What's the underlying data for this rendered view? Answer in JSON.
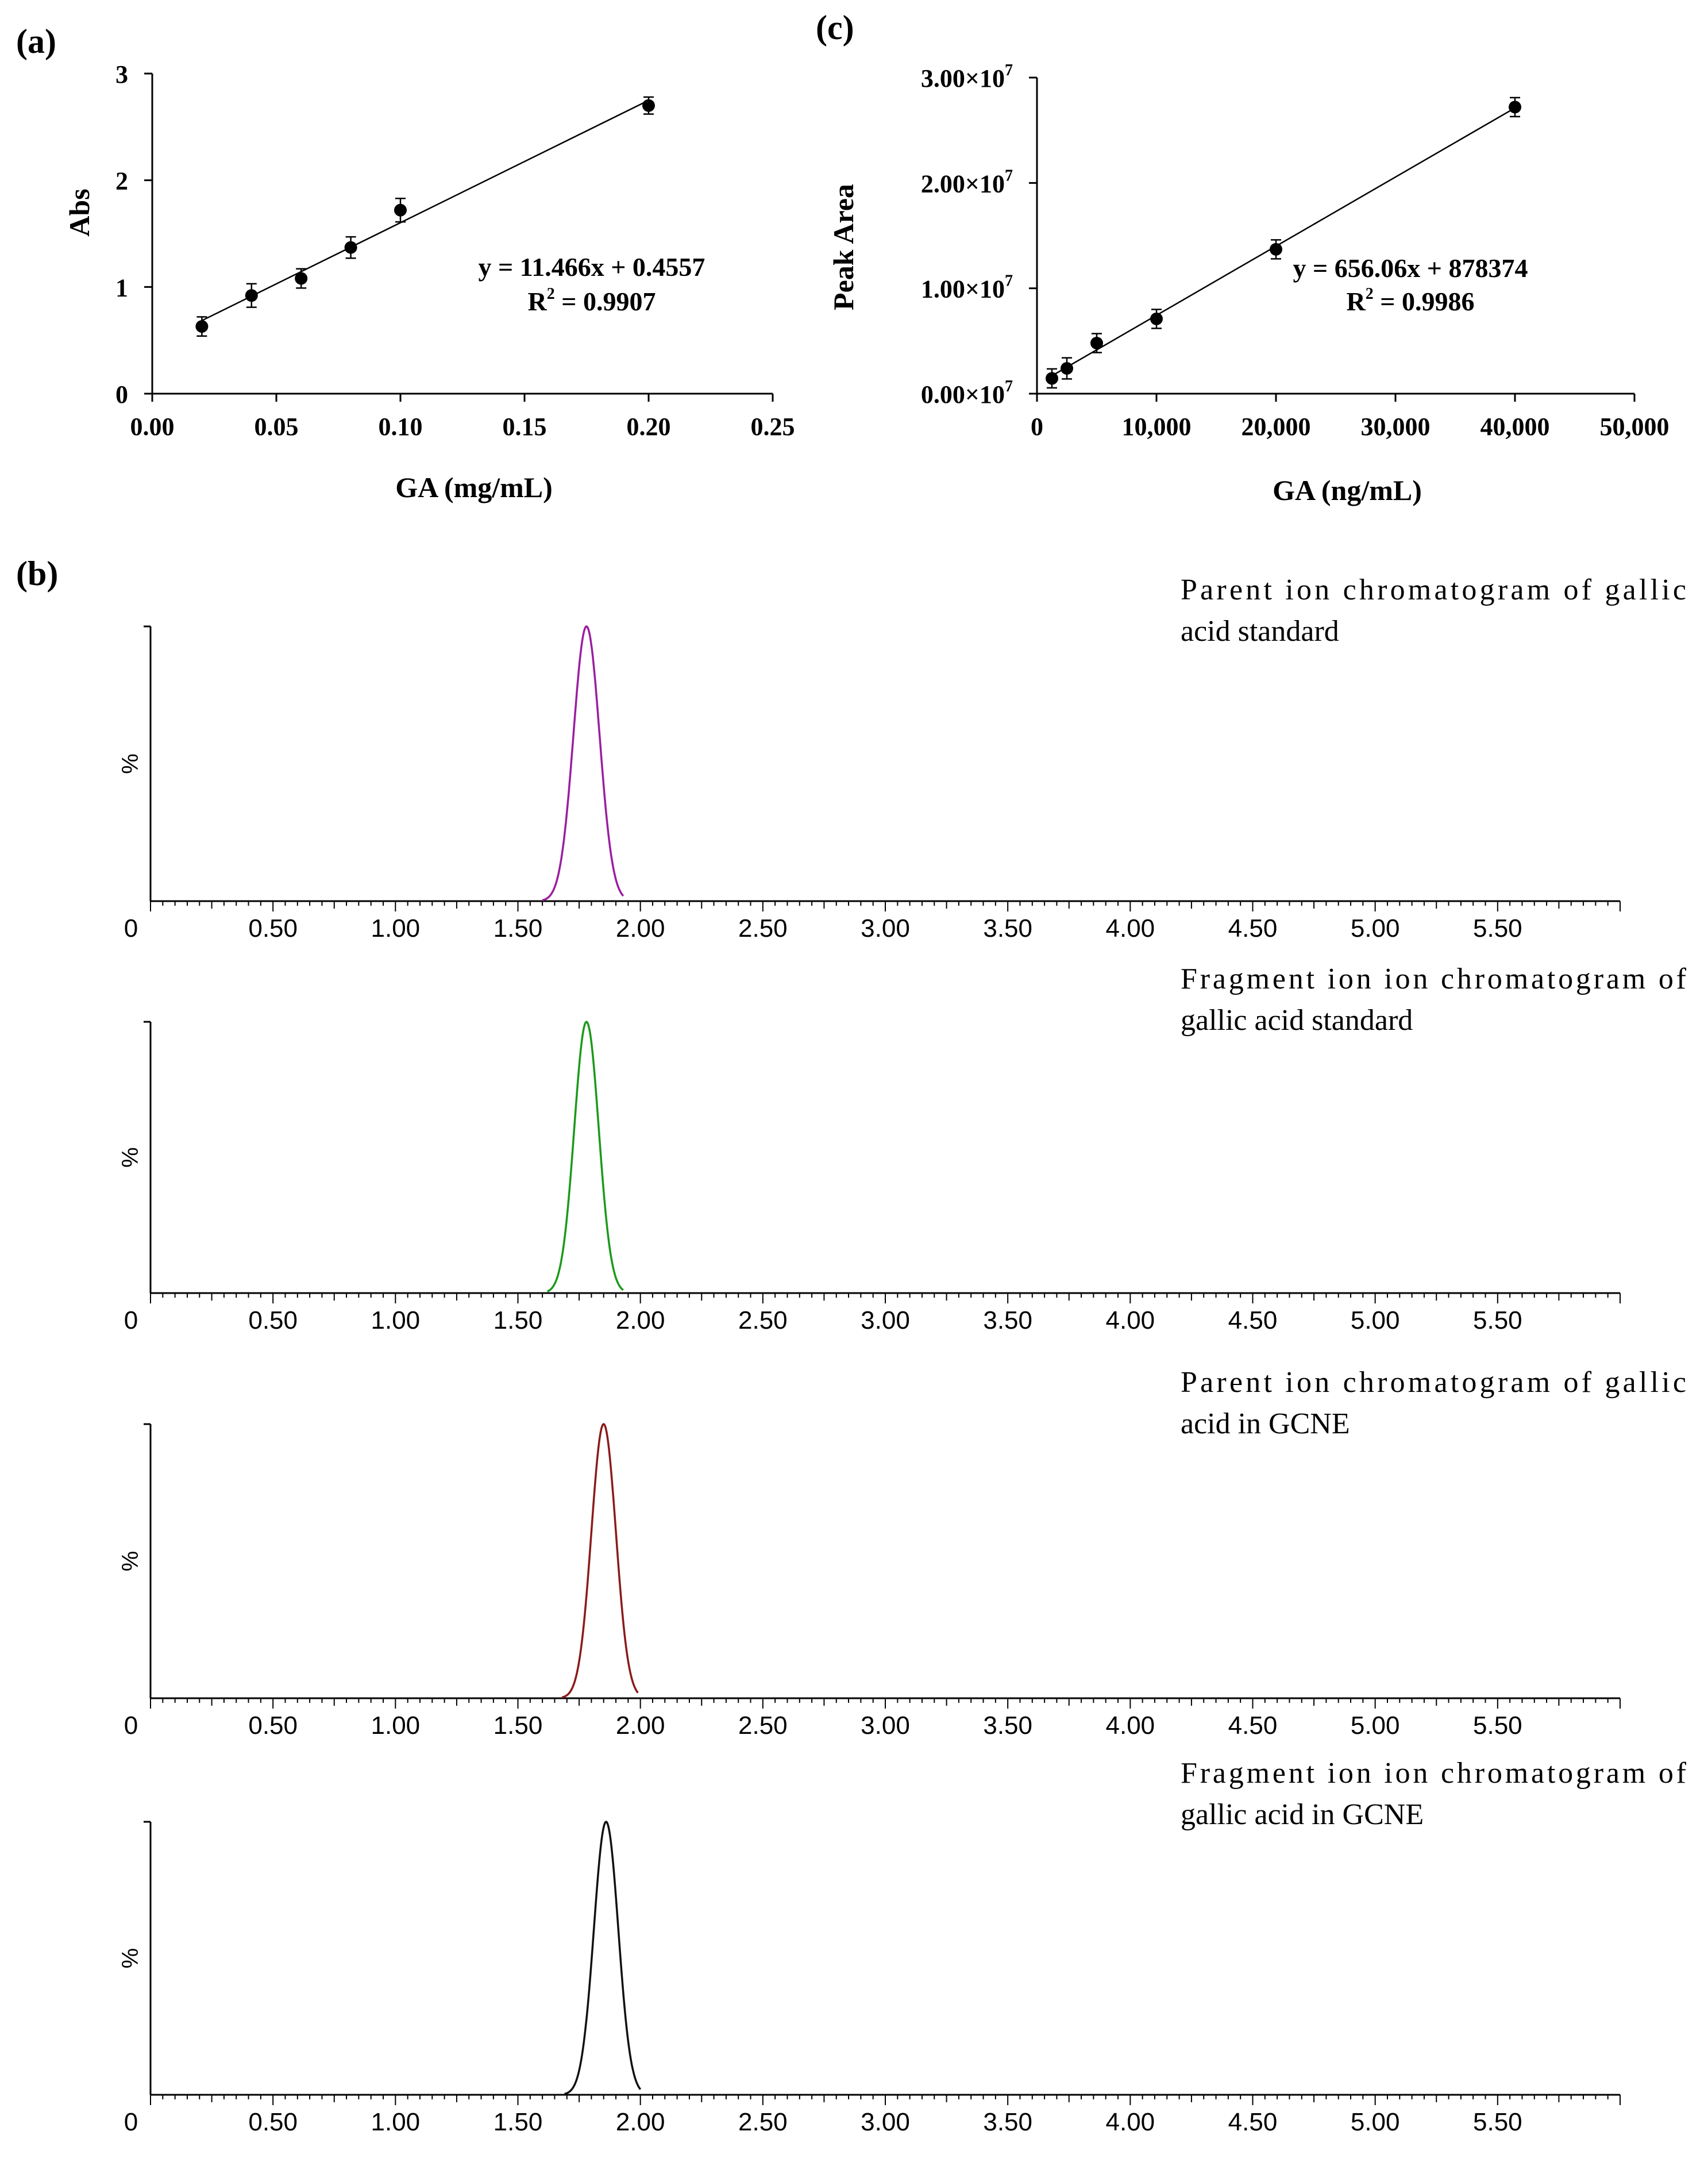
{
  "panels": {
    "a": {
      "label": "(a)"
    },
    "b": {
      "label": "(b)"
    },
    "c": {
      "label": "(c)"
    }
  },
  "chart_data": [
    {
      "id": "a",
      "type": "scatter",
      "title": "",
      "xlabel": "GA (mg/mL)",
      "ylabel": "Abs",
      "xlim": [
        0,
        0.25
      ],
      "ylim": [
        0,
        3
      ],
      "x_ticks": [
        0,
        0.05,
        0.1,
        0.15,
        0.2,
        0.25
      ],
      "x_tick_labels": [
        "0.00",
        "0.05",
        "0.10",
        "0.15",
        "0.20",
        "0.25"
      ],
      "y_ticks": [
        0,
        1,
        2,
        3
      ],
      "y_tick_labels": [
        "0",
        "1",
        "2",
        "3"
      ],
      "series": [
        {
          "name": "Absorbance",
          "x": [
            0.02,
            0.04,
            0.06,
            0.08,
            0.1,
            0.2
          ],
          "y": [
            0.63,
            0.92,
            1.08,
            1.37,
            1.72,
            2.7
          ],
          "err": [
            0.09,
            0.11,
            0.09,
            0.1,
            0.11,
            0.08
          ]
        }
      ],
      "fit": {
        "slope": 11.466,
        "intercept": 0.4557,
        "x_range": [
          0.02,
          0.2
        ]
      },
      "annotations": [
        "y = 11.466x + 0.4557",
        "R",
        "2",
        " = 0.9907"
      ]
    },
    {
      "id": "c",
      "type": "scatter",
      "title": "",
      "xlabel": "GA (ng/mL)",
      "ylabel": "Peak Area",
      "xlim": [
        0,
        50000
      ],
      "ylim": [
        0,
        30000000
      ],
      "x_ticks": [
        0,
        10000,
        20000,
        30000,
        40000,
        50000
      ],
      "x_tick_labels": [
        "0",
        "10,000",
        "20,000",
        "30,000",
        "40,000",
        "50,000"
      ],
      "y_ticks": [
        0,
        10000000,
        20000000,
        30000000
      ],
      "y_tick_labels": [
        "0.00×10",
        "1.00×10",
        "2.00×10",
        "3.00×10"
      ],
      "y_tick_exponent": "7",
      "series": [
        {
          "name": "Peak Area",
          "x": [
            1250,
            2500,
            5000,
            10000,
            20000,
            40000
          ],
          "y": [
            1450000,
            2400000,
            4800000,
            7100000,
            13700000,
            27200000
          ],
          "err": [
            900000,
            1000000,
            900000,
            900000,
            900000,
            900000
          ]
        }
      ],
      "fit": {
        "slope": 656.06,
        "intercept": 878374,
        "x_range": [
          1250,
          40000
        ]
      },
      "annotations": [
        "y = 656.06x + 878374",
        "R",
        "2",
        " = 0.9986"
      ]
    },
    {
      "id": "b1",
      "type": "line",
      "title": "Parent ion chromatogram of gallic",
      "title_line2": "acid standard",
      "color": "#9b1ea0",
      "ylabel": "%",
      "xlim": [
        0,
        6.0
      ],
      "x_tick_labels": [
        "0",
        "0.50",
        "1.00",
        "1.50",
        "2.00",
        "2.50",
        "3.00",
        "3.50",
        "4.00",
        "4.50",
        "5.00",
        "5.50"
      ],
      "peak": {
        "center": 1.78,
        "start": 1.6,
        "end": 1.93,
        "height": 100
      }
    },
    {
      "id": "b2",
      "type": "line",
      "title": "Fragment ion ion chromatogram of",
      "title_line2": "gallic acid standard",
      "color": "#1a9a1a",
      "ylabel": "%",
      "xlim": [
        0,
        6.0
      ],
      "x_tick_labels": [
        "0",
        "0.50",
        "1.00",
        "1.50",
        "2.00",
        "2.50",
        "3.00",
        "3.50",
        "4.00",
        "4.50",
        "5.00",
        "5.50"
      ],
      "peak": {
        "center": 1.78,
        "start": 1.62,
        "end": 1.93,
        "height": 100
      }
    },
    {
      "id": "b3",
      "type": "line",
      "title": "Parent ion chromatogram of gallic",
      "title_line2": "acid in GCNE",
      "color": "#8b1a1a",
      "ylabel": "%",
      "xlim": [
        0,
        6.0
      ],
      "x_tick_labels": [
        "0",
        "0.50",
        "1.00",
        "1.50",
        "2.00",
        "2.50",
        "3.00",
        "3.50",
        "4.00",
        "4.50",
        "5.00",
        "5.50"
      ],
      "peak": {
        "center": 1.85,
        "start": 1.68,
        "end": 1.99,
        "height": 100
      }
    },
    {
      "id": "b4",
      "type": "line",
      "title": "Fragment ion ion chromatogram of",
      "title_line2": "gallic acid in GCNE",
      "color": "#111111",
      "ylabel": "%",
      "xlim": [
        0,
        6.0
      ],
      "x_tick_labels": [
        "0",
        "0.50",
        "1.00",
        "1.50",
        "2.00",
        "2.50",
        "3.00",
        "3.50",
        "4.00",
        "4.50",
        "5.00",
        "5.50"
      ],
      "peak": {
        "center": 1.86,
        "start": 1.69,
        "end": 2.0,
        "height": 100
      }
    }
  ]
}
